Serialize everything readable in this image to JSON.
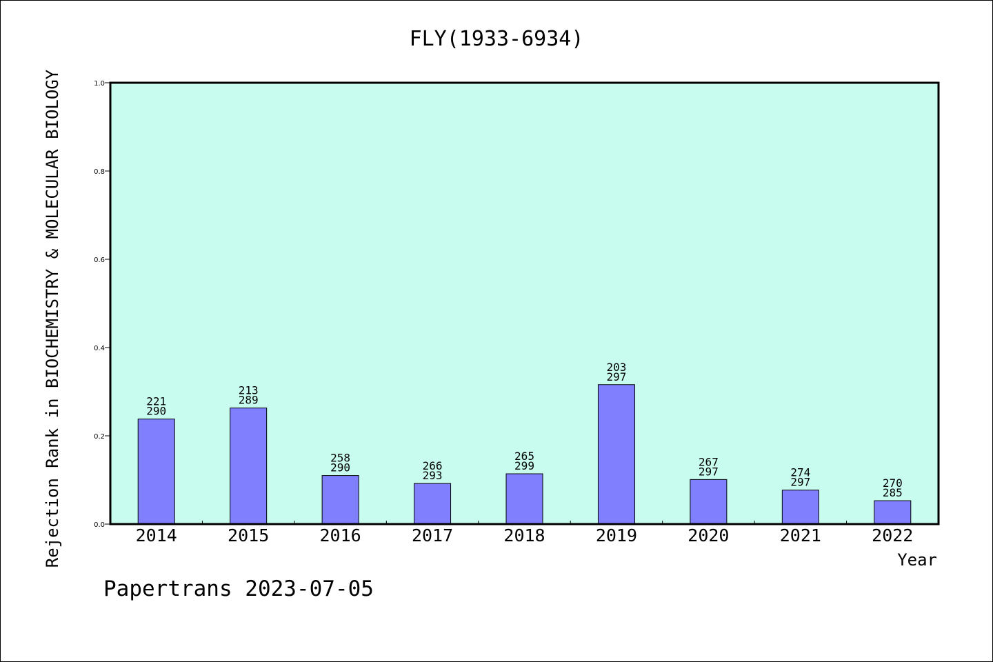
{
  "chart_data": {
    "type": "bar",
    "title": "FLY(1933-6934)",
    "xlabel": "Year",
    "ylabel": "Rejection Rank in BIOCHEMISTRY & MOLECULAR BIOLOGY",
    "ylim": [
      0,
      1
    ],
    "yticks": [
      "0.0",
      "0.2",
      "0.4",
      "0.6",
      "0.8",
      "1.0"
    ],
    "categories": [
      "2014",
      "2015",
      "2016",
      "2017",
      "2018",
      "2019",
      "2020",
      "2021",
      "2022"
    ],
    "values": [
      0.238,
      0.263,
      0.11,
      0.092,
      0.114,
      0.316,
      0.101,
      0.077,
      0.053
    ],
    "rank_labels": [
      "221",
      "213",
      "258",
      "266",
      "265",
      "203",
      "267",
      "274",
      "270"
    ],
    "total_labels": [
      "290",
      "289",
      "290",
      "293",
      "299",
      "297",
      "297",
      "297",
      "285"
    ],
    "grid": false,
    "colors": {
      "plot_background": "#c8fcee",
      "bar_fill": "#8080ff",
      "bar_stroke": "#000000"
    }
  },
  "footer": "Papertrans 2023-07-05"
}
